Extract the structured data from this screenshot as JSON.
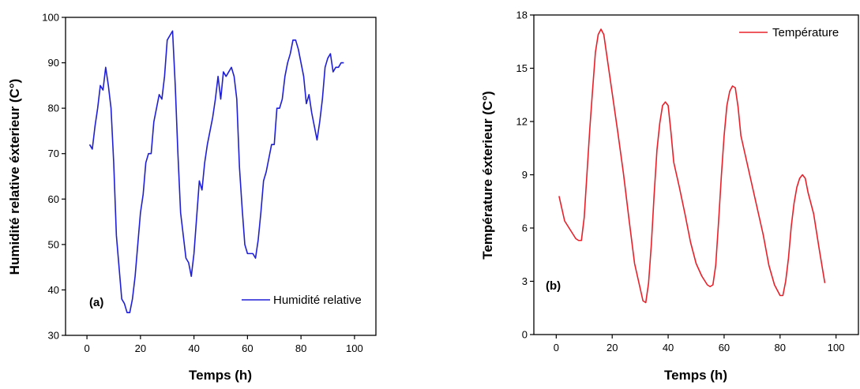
{
  "chart_data": [
    {
      "type": "line",
      "panel_label": "(a)",
      "xlabel": "Temps (h)",
      "ylabel": "Humidité relative éxterieur (C°)",
      "xlim": [
        -8,
        108
      ],
      "ylim": [
        30,
        100
      ],
      "xticks": [
        0,
        20,
        40,
        60,
        80,
        100
      ],
      "yticks": [
        30,
        40,
        50,
        60,
        70,
        80,
        90,
        100
      ],
      "grid": false,
      "legend_position": "bottom-right",
      "series": [
        {
          "name": "Humidité relative",
          "color": "#1f1fd6",
          "x": [
            1,
            2,
            3,
            4,
            5,
            6,
            7,
            8,
            9,
            10,
            11,
            12,
            13,
            14,
            15,
            16,
            17,
            18,
            19,
            20,
            21,
            22,
            23,
            24,
            25,
            26,
            27,
            28,
            29,
            30,
            31,
            32,
            33,
            34,
            35,
            36,
            37,
            38,
            39,
            40,
            41,
            42,
            43,
            44,
            45,
            46,
            47,
            48,
            49,
            50,
            51,
            52,
            53,
            54,
            55,
            56,
            57,
            58,
            59,
            60,
            61,
            62,
            63,
            64,
            65,
            66,
            67,
            68,
            69,
            70,
            71,
            72,
            73,
            74,
            75,
            76,
            77,
            78,
            79,
            80,
            81,
            82,
            83,
            84,
            85,
            86,
            87,
            88,
            89,
            90,
            91,
            92,
            93,
            94,
            95,
            96
          ],
          "y": [
            72,
            71,
            76,
            80,
            85,
            84,
            89,
            85,
            80,
            68,
            52,
            45,
            38,
            37,
            35,
            35,
            38,
            43,
            50,
            57,
            61,
            68,
            70,
            70,
            77,
            80,
            83,
            82,
            87,
            95,
            96,
            97,
            85,
            70,
            57,
            52,
            47,
            46,
            43,
            48,
            56,
            64,
            62,
            68,
            72,
            75,
            78,
            82,
            87,
            82,
            88,
            87,
            88,
            89,
            87,
            82,
            67,
            58,
            50,
            48,
            48,
            48,
            47,
            51,
            57,
            64,
            66,
            69,
            72,
            72,
            80,
            80,
            82,
            87,
            90,
            92,
            95,
            95,
            93,
            90,
            87,
            81,
            83,
            79,
            76,
            73,
            77,
            82,
            89,
            91,
            92,
            88,
            89,
            89,
            90,
            90
          ]
        }
      ]
    },
    {
      "type": "line",
      "panel_label": "(b)",
      "xlabel": "Temps (h)",
      "ylabel": "Température éxterieur (C°)",
      "xlim": [
        -8,
        108
      ],
      "ylim": [
        0,
        18
      ],
      "xticks": [
        0,
        20,
        40,
        60,
        80,
        100
      ],
      "yticks": [
        0,
        3,
        6,
        9,
        12,
        15,
        18
      ],
      "grid": false,
      "legend_position": "top-right",
      "series": [
        {
          "name": "Température",
          "color": "#e8202a",
          "x": [
            1,
            3,
            5,
            7,
            8,
            9,
            10,
            11,
            12,
            13,
            14,
            15,
            16,
            17,
            18,
            20,
            22,
            24,
            26,
            28,
            30,
            31,
            32,
            33,
            34,
            35,
            36,
            37,
            38,
            39,
            40,
            41,
            42,
            44,
            46,
            48,
            50,
            52,
            54,
            55,
            56,
            57,
            58,
            59,
            60,
            61,
            62,
            63,
            64,
            65,
            66,
            68,
            70,
            72,
            74,
            76,
            78,
            79,
            80,
            81,
            82,
            83,
            84,
            85,
            86,
            87,
            88,
            89,
            90,
            92,
            94,
            96
          ],
          "y": [
            7.8,
            6.4,
            5.9,
            5.4,
            5.3,
            5.3,
            6.6,
            9.1,
            11.6,
            13.8,
            15.9,
            16.9,
            17.2,
            16.9,
            15.8,
            13.6,
            11.4,
            9.1,
            6.5,
            4.0,
            2.6,
            1.9,
            1.8,
            2.9,
            5.1,
            7.9,
            10.4,
            11.9,
            12.9,
            13.1,
            12.9,
            11.4,
            9.7,
            8.3,
            6.8,
            5.2,
            4.0,
            3.3,
            2.8,
            2.7,
            2.8,
            3.9,
            6.3,
            8.9,
            11.2,
            12.9,
            13.7,
            14.0,
            13.9,
            12.8,
            11.2,
            9.8,
            8.4,
            7.0,
            5.6,
            3.9,
            2.8,
            2.5,
            2.2,
            2.2,
            3.0,
            4.3,
            6.1,
            7.4,
            8.3,
            8.8,
            9.0,
            8.8,
            8.0,
            6.8,
            4.8,
            2.9
          ]
        }
      ]
    }
  ]
}
